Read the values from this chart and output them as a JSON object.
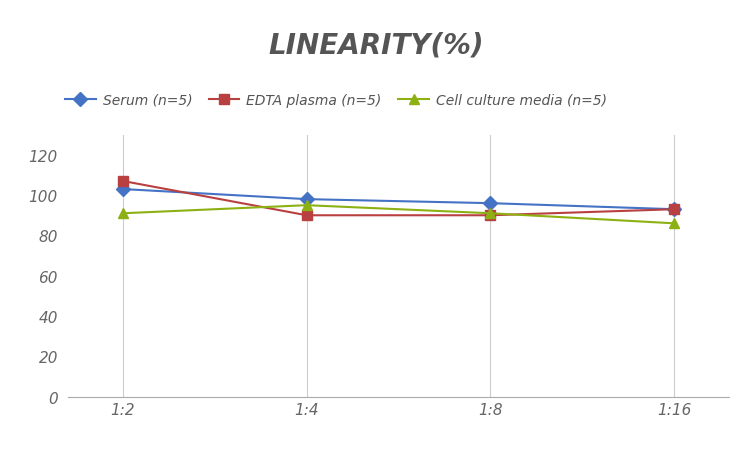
{
  "title": "LINEARITY(%)",
  "x_labels": [
    "1:2",
    "1:4",
    "1:8",
    "1:16"
  ],
  "series": [
    {
      "label": "Serum (n=5)",
      "values": [
        103,
        98,
        96,
        93
      ],
      "color": "#4472C4",
      "marker": "D",
      "marker_color": "#4472C4"
    },
    {
      "label": "EDTA plasma (n=5)",
      "values": [
        107,
        90,
        90,
        93
      ],
      "color": "#B94040",
      "marker": "s",
      "marker_color": "#B94040"
    },
    {
      "label": "Cell culture media (n=5)",
      "values": [
        91,
        95,
        91,
        86
      ],
      "color": "#8DB012",
      "marker": "^",
      "marker_color": "#8DB012"
    }
  ],
  "ylim": [
    0,
    130
  ],
  "yticks": [
    0,
    20,
    40,
    60,
    80,
    100,
    120
  ],
  "background_color": "#FFFFFF",
  "grid_color": "#CCCCCC",
  "title_fontsize": 20,
  "legend_fontsize": 10,
  "tick_fontsize": 11,
  "title_color": "#555555"
}
